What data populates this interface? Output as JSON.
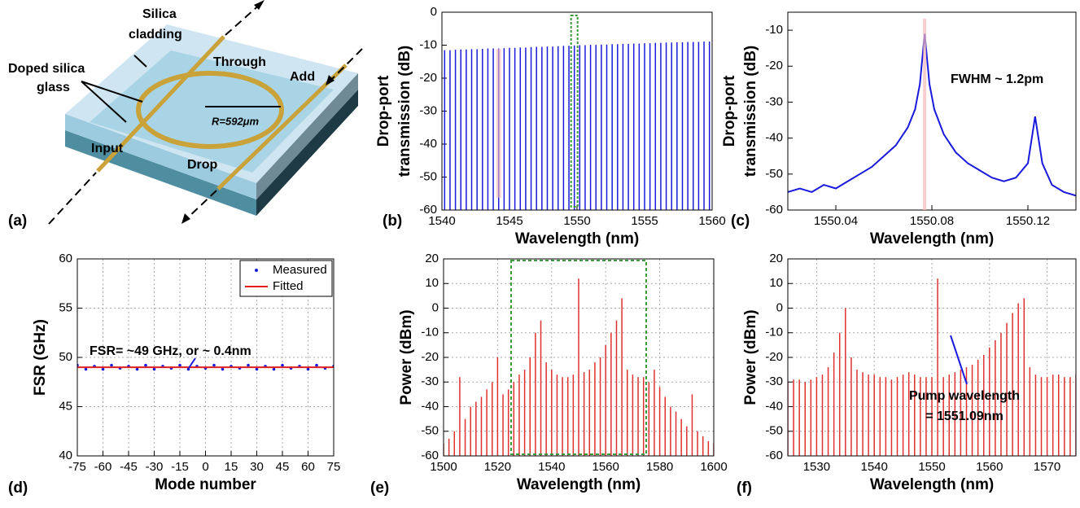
{
  "diagram": {
    "panel_label": "(a)",
    "labels": {
      "cladding": [
        "Silica",
        "cladding"
      ],
      "core": [
        "Doped silica",
        "glass"
      ],
      "through": "Through",
      "add": "Add",
      "input": "Input",
      "drop": "Drop",
      "radius": "R=592μm"
    }
  },
  "chart_data": [
    {
      "type": "spectrum",
      "panel_label": "(b)",
      "xlabel": "Wavelength (nm)",
      "ylabel": [
        "Drop-port",
        "transmission (dB)"
      ],
      "color": "#1a1adc",
      "grid": false,
      "xlim": [
        1540,
        1560
      ],
      "xticks": [
        1540,
        1545,
        1550,
        1555,
        1560
      ],
      "ylim": [
        -60,
        0
      ],
      "yticks": [
        -60,
        -50,
        -40,
        -30,
        -20,
        -10,
        0
      ],
      "x": [
        1540.2,
        1540.6,
        1541.0,
        1541.4,
        1541.8,
        1542.2,
        1542.6,
        1543.0,
        1543.4,
        1543.8,
        1544.2,
        1544.6,
        1545.0,
        1545.4,
        1545.8,
        1546.2,
        1546.6,
        1547.0,
        1547.4,
        1547.8,
        1548.2,
        1548.6,
        1549.0,
        1549.4,
        1549.8,
        1550.2,
        1550.6,
        1551.0,
        1551.4,
        1551.8,
        1552.2,
        1552.6,
        1553.0,
        1553.4,
        1553.8,
        1554.2,
        1554.6,
        1555.0,
        1555.4,
        1555.8,
        1556.2,
        1556.6,
        1557.0,
        1557.4,
        1557.8,
        1558.2,
        1558.6,
        1559.0,
        1559.4,
        1559.8
      ],
      "values": [
        -11.5,
        -11.5,
        -11.4,
        -11.3,
        -11.3,
        -11.2,
        -11.2,
        -11.1,
        -11.0,
        -11.0,
        -11.0,
        -10.9,
        -10.8,
        -10.8,
        -10.7,
        -10.7,
        -10.6,
        -10.5,
        -10.5,
        -10.4,
        -10.4,
        -10.3,
        -10.2,
        -10.2,
        -10.1,
        -10.0,
        -10.0,
        -9.9,
        -9.9,
        -9.8,
        -9.8,
        -9.7,
        -9.7,
        -9.6,
        -9.6,
        -9.5,
        -9.5,
        -9.4,
        -9.4,
        -9.3,
        -9.3,
        -9.2,
        -9.2,
        -9.1,
        -9.1,
        -9.0,
        -9.0,
        -9.0,
        -8.9,
        -8.9
      ]
    },
    {
      "type": "line",
      "panel_label": "(c)",
      "xlabel": "Wavelength (nm)",
      "ylabel": [
        "Drop-port",
        "transmission (dB)"
      ],
      "color": "#1a1adc",
      "grid": false,
      "xlim": [
        1550.02,
        1550.14
      ],
      "xticks": [
        1550.04,
        1550.08,
        1550.12
      ],
      "ylim": [
        -60,
        -5
      ],
      "yticks": [
        -60,
        -50,
        -40,
        -30,
        -20,
        -10
      ],
      "annotations": [
        "FWHM ~ 1.2pm"
      ],
      "x": [
        1550.02,
        1550.025,
        1550.03,
        1550.035,
        1550.04,
        1550.045,
        1550.05,
        1550.055,
        1550.06,
        1550.065,
        1550.07,
        1550.073,
        1550.075,
        1550.076,
        1550.077,
        1550.078,
        1550.079,
        1550.081,
        1550.085,
        1550.09,
        1550.095,
        1550.1,
        1550.105,
        1550.11,
        1550.115,
        1550.12,
        1550.123,
        1550.126,
        1550.13,
        1550.135,
        1550.14
      ],
      "values": [
        -55,
        -54,
        -55,
        -53,
        -54,
        -52,
        -50,
        -48,
        -45,
        -42,
        -37,
        -32,
        -25,
        -18,
        -11,
        -18,
        -25,
        -32,
        -39,
        -44,
        -47,
        -49,
        -51,
        -52,
        -51,
        -47,
        -34,
        -47,
        -53,
        -55,
        -56
      ]
    },
    {
      "type": "scatter",
      "panel_label": "(d)",
      "xlabel": "Mode number",
      "ylabel": [
        "FSR (GHz)"
      ],
      "grid": true,
      "legend": "upper right",
      "xlim": [
        -75,
        75
      ],
      "xticks": [
        -75,
        -60,
        -45,
        -30,
        -15,
        0,
        15,
        30,
        45,
        60,
        75
      ],
      "ylim": [
        40,
        60
      ],
      "yticks": [
        40,
        45,
        50,
        55,
        60
      ],
      "annotations": [
        "FSR= ~49 GHz, or ~ 0.4nm"
      ],
      "series": [
        {
          "name": "Measured",
          "style": "dots",
          "color": "#1a1adc",
          "x": [
            -75,
            -70,
            -65,
            -60,
            -55,
            -50,
            -45,
            -40,
            -35,
            -30,
            -25,
            -20,
            -15,
            -10,
            -5,
            0,
            5,
            10,
            15,
            20,
            25,
            30,
            35,
            40,
            45,
            50,
            55,
            60,
            65,
            70,
            75
          ],
          "values": [
            49.2,
            48.8,
            49.1,
            48.8,
            49.2,
            48.9,
            49.1,
            48.8,
            49.2,
            48.8,
            49.1,
            48.9,
            49.2,
            48.8,
            49.1,
            48.9,
            49.2,
            48.8,
            49.1,
            48.9,
            49.2,
            48.8,
            49.1,
            48.8,
            49.2,
            48.9,
            49.1,
            48.8,
            49.2,
            48.9,
            49.1
          ]
        },
        {
          "name": "Fitted",
          "style": "line",
          "color": "#e02020",
          "x": [
            -75,
            75
          ],
          "values": [
            49,
            49
          ]
        }
      ]
    },
    {
      "type": "spectrum",
      "panel_label": "(e)",
      "xlabel": "Wavelength (nm)",
      "ylabel": [
        "Power (dBm)"
      ],
      "color": "#e03030",
      "grid": true,
      "xlim": [
        1500,
        1600
      ],
      "xticks": [
        1500,
        1520,
        1540,
        1560,
        1580,
        1600
      ],
      "ylim": [
        -60,
        20
      ],
      "yticks": [
        -60,
        -50,
        -40,
        -30,
        -20,
        -10,
        0,
        10,
        20
      ],
      "x": [
        1500,
        1502,
        1504,
        1506,
        1508,
        1510,
        1512,
        1514,
        1516,
        1518,
        1520,
        1522,
        1524,
        1526,
        1528,
        1530,
        1532,
        1534,
        1536,
        1538,
        1540,
        1542,
        1544,
        1546,
        1548,
        1550,
        1552,
        1554,
        1556,
        1558,
        1560,
        1562,
        1564,
        1566,
        1568,
        1570,
        1572,
        1574,
        1576,
        1578,
        1580,
        1582,
        1584,
        1586,
        1588,
        1590,
        1592,
        1594,
        1596,
        1598,
        1600
      ],
      "values": [
        -55,
        -53,
        -50,
        -28,
        -45,
        -40,
        -38,
        -36,
        -33,
        -30,
        -20,
        -35,
        -33,
        -30,
        -27,
        -25,
        -20,
        -10,
        -5,
        -22,
        -25,
        -27,
        -28,
        -28,
        -27,
        12,
        -26,
        -25,
        -22,
        -20,
        -15,
        -10,
        -5,
        4,
        -25,
        -27,
        -28,
        -28,
        -30,
        -25,
        -32,
        -36,
        -40,
        -42,
        -45,
        -48,
        -35,
        -50,
        -52,
        -54,
        -55
      ]
    },
    {
      "type": "spectrum",
      "panel_label": "(f)",
      "xlabel": "Wavelength (nm)",
      "ylabel": [
        "Power (dBm)"
      ],
      "color": "#e03030",
      "grid": true,
      "xlim": [
        1525,
        1575
      ],
      "xticks": [
        1530,
        1540,
        1550,
        1560,
        1570
      ],
      "ylim": [
        -60,
        20
      ],
      "yticks": [
        -60,
        -50,
        -40,
        -30,
        -20,
        -10,
        0,
        10,
        20
      ],
      "annotations": [
        "Pump wavelength",
        "= 1551.09nm"
      ],
      "x": [
        1525,
        1526,
        1527,
        1528,
        1529,
        1530,
        1531,
        1532,
        1533,
        1534,
        1535,
        1536,
        1537,
        1538,
        1539,
        1540,
        1541,
        1542,
        1543,
        1544,
        1545,
        1546,
        1547,
        1548,
        1549,
        1550,
        1551,
        1552,
        1553,
        1554,
        1555,
        1556,
        1557,
        1558,
        1559,
        1560,
        1561,
        1562,
        1563,
        1564,
        1565,
        1566,
        1567,
        1568,
        1569,
        1570,
        1571,
        1572,
        1573,
        1574,
        1575
      ],
      "values": [
        -30,
        -29,
        -29,
        -30,
        -29,
        -28,
        -27,
        -24,
        -18,
        -10,
        0,
        -20,
        -25,
        -26,
        -27,
        -27,
        -28,
        -28,
        -29,
        -28,
        -27,
        -26,
        -27,
        -28,
        -28,
        -28,
        12,
        -28,
        -27,
        -26,
        -25,
        -24,
        -23,
        -21,
        -19,
        -16,
        -13,
        -10,
        -6,
        -2,
        2,
        4,
        -24,
        -27,
        -28,
        -28,
        -27,
        -27,
        -28,
        -28,
        -27
      ]
    }
  ]
}
